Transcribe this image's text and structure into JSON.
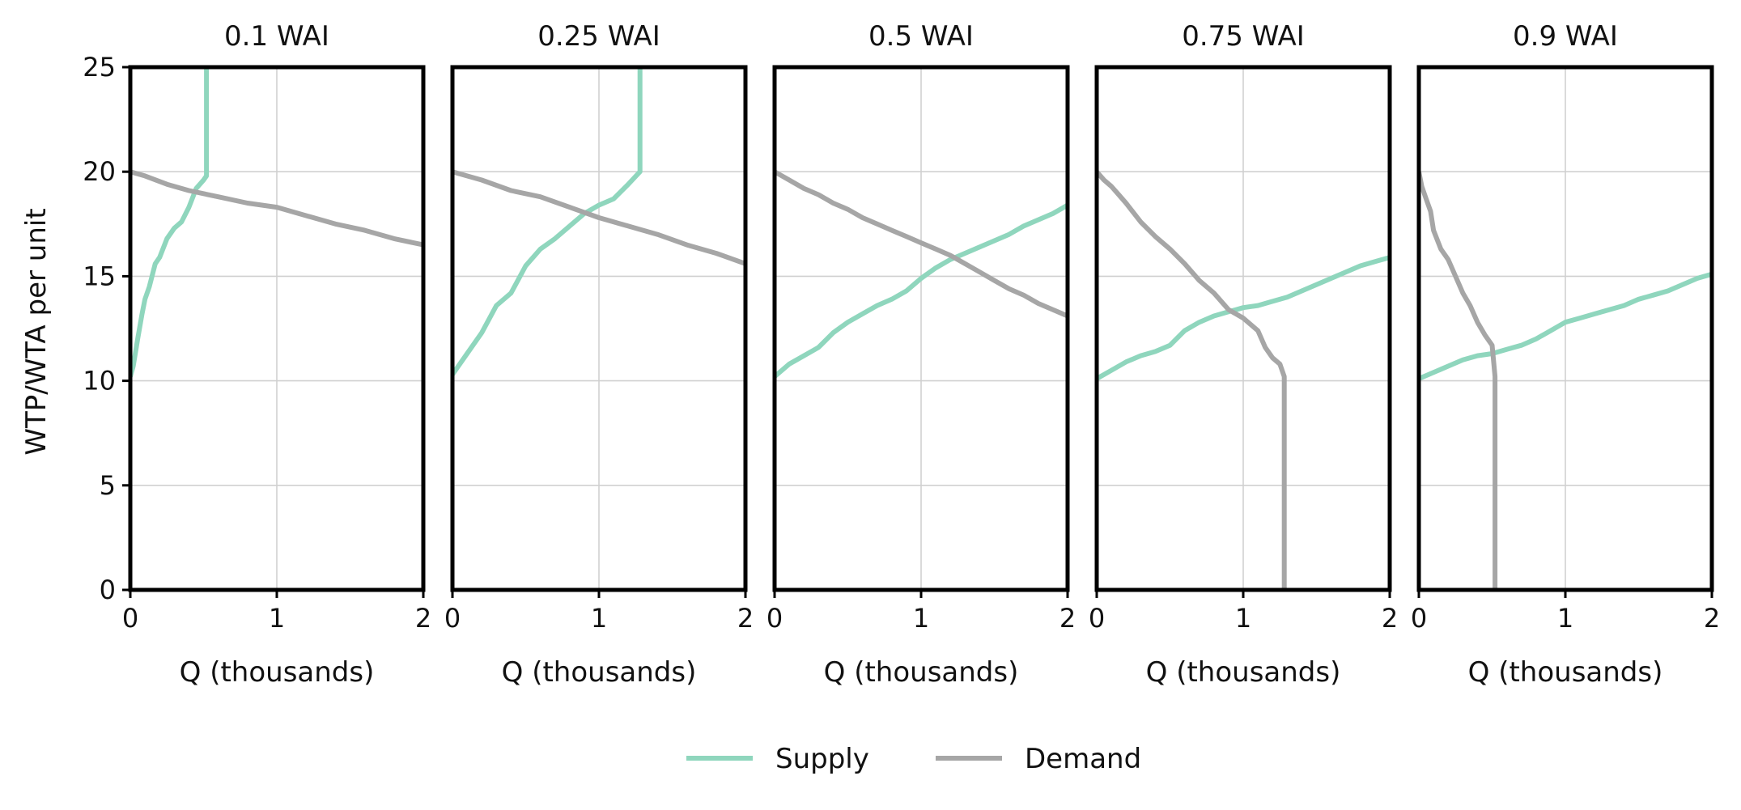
{
  "chart_data": {
    "type": "line",
    "ylabel": "WTP/WTA per unit",
    "xlabel": "Q (thousands)",
    "xlim": [
      0,
      2
    ],
    "ylim": [
      0,
      25
    ],
    "xticks": [
      0,
      1,
      2
    ],
    "yticks": [
      0,
      5,
      10,
      15,
      20,
      25
    ],
    "grid": true,
    "legend": {
      "placement": "bottom-center",
      "entries": [
        {
          "label": "Supply",
          "color": "#8fd6bd"
        },
        {
          "label": "Demand",
          "color": "#a6a6a6"
        }
      ]
    },
    "panels": [
      {
        "title": "0.1 WAI",
        "series": [
          {
            "name": "Supply",
            "color": "#8fd6bd",
            "x": [
              0,
              0.02,
              0.05,
              0.08,
              0.1,
              0.13,
              0.17,
              0.2,
              0.25,
              0.3,
              0.35,
              0.4,
              0.45,
              0.5,
              0.52,
              0.52
            ],
            "y": [
              10.2,
              10.7,
              12.0,
              13.2,
              13.9,
              14.5,
              15.6,
              15.9,
              16.8,
              17.3,
              17.6,
              18.3,
              19.2,
              19.6,
              19.8,
              25
            ]
          },
          {
            "name": "Demand",
            "color": "#a6a6a6",
            "x": [
              0,
              0.1,
              0.25,
              0.4,
              0.6,
              0.8,
              1.0,
              1.2,
              1.4,
              1.6,
              1.8,
              2.0
            ],
            "y": [
              20.0,
              19.8,
              19.4,
              19.1,
              18.8,
              18.5,
              18.3,
              17.9,
              17.5,
              17.2,
              16.8,
              16.5
            ]
          }
        ]
      },
      {
        "title": "0.25 WAI",
        "series": [
          {
            "name": "Supply",
            "color": "#8fd6bd",
            "x": [
              0,
              0.1,
              0.2,
              0.3,
              0.4,
              0.5,
              0.6,
              0.7,
              0.8,
              0.9,
              1.0,
              1.1,
              1.2,
              1.28,
              1.28
            ],
            "y": [
              10.3,
              11.3,
              12.3,
              13.6,
              14.2,
              15.5,
              16.3,
              16.8,
              17.4,
              18.0,
              18.4,
              18.7,
              19.4,
              20.0,
              25
            ]
          },
          {
            "name": "Demand",
            "color": "#a6a6a6",
            "x": [
              0,
              0.2,
              0.4,
              0.6,
              0.8,
              1.0,
              1.2,
              1.4,
              1.6,
              1.8,
              2.0
            ],
            "y": [
              20.0,
              19.6,
              19.1,
              18.8,
              18.3,
              17.8,
              17.4,
              17.0,
              16.5,
              16.1,
              15.6
            ]
          }
        ]
      },
      {
        "title": "0.5 WAI",
        "series": [
          {
            "name": "Supply",
            "color": "#8fd6bd",
            "x": [
              0,
              0.1,
              0.2,
              0.3,
              0.4,
              0.5,
              0.6,
              0.7,
              0.8,
              0.9,
              1.0,
              1.1,
              1.2,
              1.3,
              1.4,
              1.5,
              1.6,
              1.7,
              1.8,
              1.9,
              2.0
            ],
            "y": [
              10.2,
              10.8,
              11.2,
              11.6,
              12.3,
              12.8,
              13.2,
              13.6,
              13.9,
              14.3,
              14.9,
              15.4,
              15.8,
              16.1,
              16.4,
              16.7,
              17.0,
              17.4,
              17.7,
              18.0,
              18.4
            ]
          },
          {
            "name": "Demand",
            "color": "#a6a6a6",
            "x": [
              0,
              0.1,
              0.2,
              0.3,
              0.4,
              0.5,
              0.6,
              0.7,
              0.8,
              0.9,
              1.0,
              1.1,
              1.2,
              1.3,
              1.4,
              1.5,
              1.6,
              1.7,
              1.8,
              1.9,
              2.0
            ],
            "y": [
              20.0,
              19.6,
              19.2,
              18.9,
              18.5,
              18.2,
              17.8,
              17.5,
              17.2,
              16.9,
              16.6,
              16.3,
              16.0,
              15.6,
              15.2,
              14.8,
              14.4,
              14.1,
              13.7,
              13.4,
              13.1
            ]
          }
        ]
      },
      {
        "title": "0.75 WAI",
        "series": [
          {
            "name": "Supply",
            "color": "#8fd6bd",
            "x": [
              0,
              0.1,
              0.2,
              0.3,
              0.4,
              0.5,
              0.6,
              0.7,
              0.8,
              0.9,
              1.0,
              1.1,
              1.2,
              1.3,
              1.4,
              1.5,
              1.6,
              1.7,
              1.8,
              1.9,
              2.0
            ],
            "y": [
              10.1,
              10.5,
              10.9,
              11.2,
              11.4,
              11.7,
              12.4,
              12.8,
              13.1,
              13.3,
              13.5,
              13.6,
              13.8,
              14.0,
              14.3,
              14.6,
              14.9,
              15.2,
              15.5,
              15.7,
              15.9
            ]
          },
          {
            "name": "Demand",
            "color": "#a6a6a6",
            "x": [
              0,
              0.05,
              0.1,
              0.15,
              0.2,
              0.3,
              0.4,
              0.5,
              0.6,
              0.7,
              0.8,
              0.9,
              1.0,
              1.1,
              1.15,
              1.2,
              1.25,
              1.28,
              1.28
            ],
            "y": [
              20.0,
              19.6,
              19.3,
              18.9,
              18.5,
              17.6,
              16.9,
              16.3,
              15.6,
              14.8,
              14.2,
              13.4,
              13.0,
              12.4,
              11.6,
              11.1,
              10.8,
              10.2,
              0
            ]
          }
        ]
      },
      {
        "title": "0.9 WAI",
        "series": [
          {
            "name": "Supply",
            "color": "#8fd6bd",
            "x": [
              0,
              0.1,
              0.2,
              0.3,
              0.4,
              0.5,
              0.6,
              0.7,
              0.8,
              0.9,
              1.0,
              1.1,
              1.2,
              1.3,
              1.4,
              1.5,
              1.6,
              1.7,
              1.8,
              1.9,
              2.0
            ],
            "y": [
              10.1,
              10.4,
              10.7,
              11.0,
              11.2,
              11.3,
              11.5,
              11.7,
              12.0,
              12.4,
              12.8,
              13.0,
              13.2,
              13.4,
              13.6,
              13.9,
              14.1,
              14.3,
              14.6,
              14.9,
              15.1
            ]
          },
          {
            "name": "Demand",
            "color": "#a6a6a6",
            "x": [
              0,
              0.02,
              0.05,
              0.08,
              0.1,
              0.15,
              0.2,
              0.25,
              0.3,
              0.35,
              0.4,
              0.45,
              0.5,
              0.52,
              0.52
            ],
            "y": [
              20.0,
              19.3,
              18.7,
              18.1,
              17.2,
              16.3,
              15.8,
              15.0,
              14.2,
              13.6,
              12.8,
              12.2,
              11.7,
              10.2,
              0
            ]
          }
        ]
      }
    ]
  }
}
